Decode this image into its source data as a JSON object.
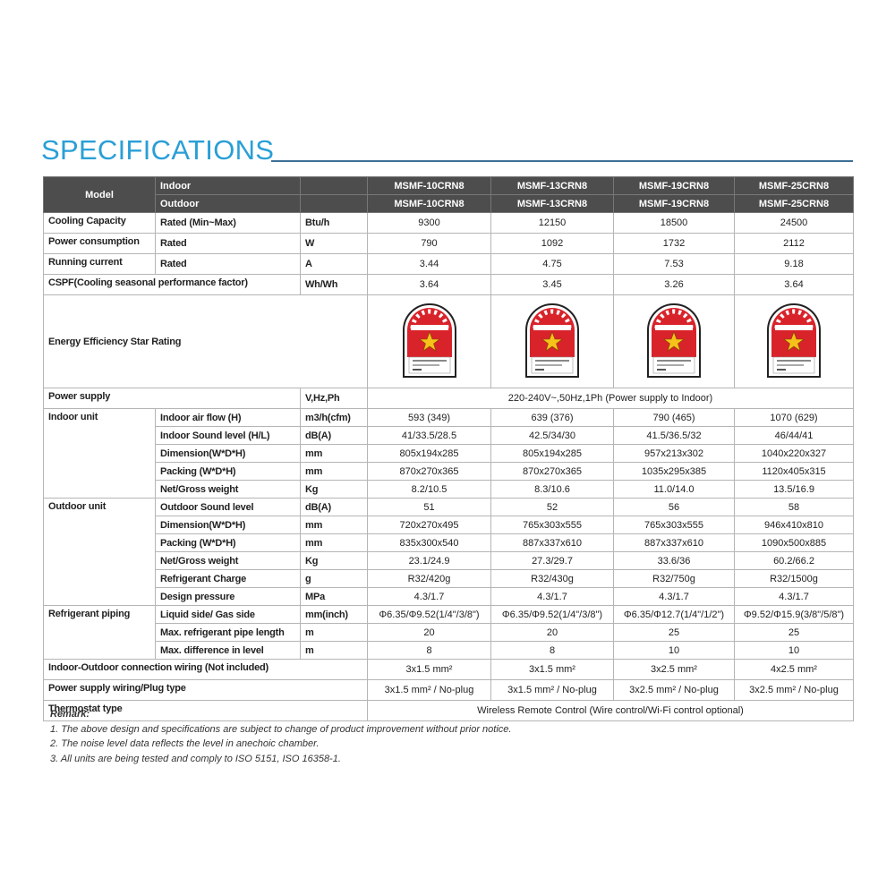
{
  "header": {
    "title": "SPECIFICATIONS"
  },
  "table": {
    "model_label": "Model",
    "indoor_label": "Indoor",
    "outdoor_label": "Outdoor",
    "indoor_models": [
      "MSMF-10CRN8",
      "MSMF-13CRN8",
      "MSMF-19CRN8",
      "MSMF-25CRN8"
    ],
    "outdoor_models": [
      "MSMF-10CRN8",
      "MSMF-13CRN8",
      "MSMF-19CRN8",
      "MSMF-25CRN8"
    ],
    "groups": [
      {
        "label": "Cooling Capacity",
        "rows": [
          {
            "sub": "Rated (Min~Max)",
            "unit": "Btu/h",
            "values": [
              "9300",
              "12150",
              "18500",
              "24500"
            ]
          }
        ]
      },
      {
        "label": "Power consumption",
        "rows": [
          {
            "sub": "Rated",
            "unit": "W",
            "values": [
              "790",
              "1092",
              "1732",
              "2112"
            ]
          }
        ]
      },
      {
        "label": "Running current",
        "rows": [
          {
            "sub": "Rated",
            "unit": "A",
            "values": [
              "3.44",
              "4.75",
              "7.53",
              "9.18"
            ]
          }
        ]
      },
      {
        "label": "CSPF(Cooling seasonal performance factor)",
        "rows": [
          {
            "unit": "Wh/Wh",
            "values": [
              "3.64",
              "3.45",
              "3.26",
              "3.64"
            ]
          }
        ]
      },
      {
        "label": "Energy Efficiency Star Rating"
      },
      {
        "label": "Power supply",
        "rows": [
          {
            "unit": "V,Hz,Ph",
            "value": "220-240V~,50Hz,1Ph (Power supply to Indoor)"
          }
        ]
      },
      {
        "label": "Indoor unit",
        "rows": [
          {
            "sub": "Indoor air flow (H)",
            "unit": "m3/h(cfm)",
            "values": [
              "593 (349)",
              "639 (376)",
              "790 (465)",
              "1070 (629)"
            ]
          },
          {
            "sub": "Indoor Sound level (H/L)",
            "unit": "dB(A)",
            "values": [
              "41/33.5/28.5",
              "42.5/34/30",
              "41.5/36.5/32",
              "46/44/41"
            ]
          },
          {
            "sub": "Dimension(W*D*H)",
            "unit": "mm",
            "values": [
              "805x194x285",
              "805x194x285",
              "957x213x302",
              "1040x220x327"
            ]
          },
          {
            "sub": "Packing   (W*D*H)",
            "unit": "mm",
            "values": [
              "870x270x365",
              "870x270x365",
              "1035x295x385",
              "1120x405x315"
            ]
          },
          {
            "sub": "Net/Gross weight",
            "unit": "Kg",
            "values": [
              "8.2/10.5",
              "8.3/10.6",
              "11.0/14.0",
              "13.5/16.9"
            ]
          }
        ]
      },
      {
        "label": "Outdoor unit",
        "rows": [
          {
            "sub": "Outdoor Sound level",
            "unit": "dB(A)",
            "values": [
              "51",
              "52",
              "56",
              "58"
            ]
          },
          {
            "sub": "Dimension(W*D*H)",
            "unit": "mm",
            "values": [
              "720x270x495",
              "765x303x555",
              "765x303x555",
              "946x410x810"
            ]
          },
          {
            "sub": "Packing   (W*D*H)",
            "unit": "mm",
            "values": [
              "835x300x540",
              "887x337x610",
              "887x337x610",
              "1090x500x885"
            ]
          },
          {
            "sub": "Net/Gross weight",
            "unit": "Kg",
            "values": [
              "23.1/24.9",
              "27.3/29.7",
              "33.6/36",
              "60.2/66.2"
            ]
          },
          {
            "sub": "Refrigerant Charge",
            "unit": "g",
            "values": [
              "R32/420g",
              "R32/430g",
              "R32/750g",
              "R32/1500g"
            ]
          },
          {
            "sub": "Design pressure",
            "unit": "MPa",
            "values": [
              "4.3/1.7",
              "4.3/1.7",
              "4.3/1.7",
              "4.3/1.7"
            ]
          }
        ]
      },
      {
        "label": "Refrigerant piping",
        "rows": [
          {
            "sub": "Liquid side/ Gas side",
            "unit": "mm(inch)",
            "values": [
              "Φ6.35/Φ9.52(1/4\"/3/8\")",
              "Φ6.35/Φ9.52(1/4\"/3/8\")",
              "Φ6.35/Φ12.7(1/4\"/1/2\")",
              "Φ9.52/Φ15.9(3/8\"/5/8\")"
            ]
          },
          {
            "sub": "Max. refrigerant pipe length",
            "unit": "m",
            "values": [
              "20",
              "20",
              "25",
              "25"
            ]
          },
          {
            "sub": "Max. difference in level",
            "unit": "m",
            "values": [
              "8",
              "8",
              "10",
              "10"
            ]
          }
        ]
      },
      {
        "label": "Indoor-Outdoor connection wiring (Not included)",
        "rows": [
          {
            "values": [
              "3x1.5 mm²",
              "3x1.5 mm²",
              "3x2.5 mm²",
              "4x2.5 mm²"
            ]
          }
        ]
      },
      {
        "label": "Power supply wiring/Plug type",
        "rows": [
          {
            "values": [
              "3x1.5 mm² / No-plug",
              "3x1.5 mm² / No-plug",
              "3x2.5 mm² / No-plug",
              "3x2.5 mm² / No-plug"
            ]
          }
        ]
      },
      {
        "label": "Thermostat type",
        "rows": [
          {
            "value": "Wireless Remote Control  (Wire control/Wi-Fi control optional)"
          }
        ]
      }
    ]
  },
  "remark": {
    "title": "Remark:",
    "notes": [
      "1. The above design and specifications are subject to change of product improvement without prior notice.",
      "2. The noise level data reflects the level in anechoic chamber.",
      "3. All units are being tested and comply to ISO 5151, ISO 16358-1."
    ]
  }
}
